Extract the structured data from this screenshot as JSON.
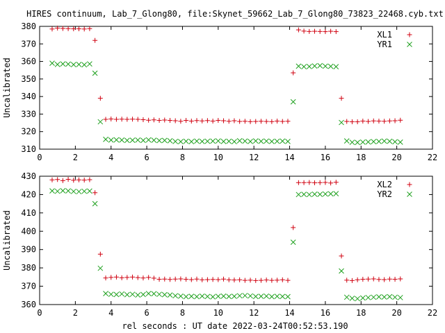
{
  "title": "HIRES continuum, Lab_7_Glong80, file:Skynet_59662_Lab_7_Glong80_73823_22468.cyb.txt",
  "xlabel": "rel seconds : UT date 2022-03-24T00:52:53.190",
  "colors": {
    "red": "#d0000f",
    "green": "#1ea01e",
    "axis": "#000000"
  },
  "chart_data": [
    {
      "type": "scatter",
      "ylabel": "Uncalibrated",
      "xlim": [
        0,
        22
      ],
      "ylim": [
        310,
        380
      ],
      "xticks": [
        0,
        2,
        4,
        6,
        8,
        10,
        12,
        14,
        16,
        18,
        20,
        22
      ],
      "yticks": [
        310,
        320,
        330,
        340,
        350,
        360,
        370,
        380
      ],
      "legend_position": "top-right",
      "series": [
        {
          "name": "XL1",
          "marker": "plus",
          "color": "#d0000f",
          "x": [
            0.7,
            1.0,
            1.3,
            1.6,
            1.9,
            2.2,
            2.5,
            2.8,
            3.1,
            3.4,
            3.7,
            4.0,
            4.3,
            4.6,
            4.9,
            5.2,
            5.5,
            5.8,
            6.1,
            6.4,
            6.7,
            7.0,
            7.3,
            7.6,
            7.9,
            8.2,
            8.5,
            8.8,
            9.1,
            9.4,
            9.7,
            10.0,
            10.3,
            10.6,
            10.9,
            11.2,
            11.5,
            11.8,
            12.1,
            12.4,
            12.7,
            13.0,
            13.3,
            13.6,
            13.9,
            14.2,
            14.5,
            14.8,
            15.1,
            15.4,
            15.7,
            16.0,
            16.3,
            16.6,
            16.9,
            17.2,
            17.5,
            17.8,
            18.1,
            18.4,
            18.7,
            19.0,
            19.3,
            19.6,
            19.9,
            20.2
          ],
          "y": [
            378.5,
            379.0,
            378.8,
            378.7,
            378.6,
            378.6,
            378.5,
            378.7,
            372.0,
            339.0,
            327.0,
            327.2,
            327.0,
            327.1,
            327.0,
            327.1,
            327.0,
            326.8,
            326.5,
            326.7,
            326.4,
            326.6,
            326.4,
            326.2,
            325.9,
            326.4,
            326.0,
            326.3,
            326.1,
            326.3,
            326.0,
            326.4,
            326.2,
            325.9,
            326.2,
            325.8,
            325.9,
            325.7,
            325.8,
            325.9,
            325.8,
            325.7,
            326.0,
            325.8,
            325.9,
            353.5,
            378.0,
            377.3,
            377.1,
            377.2,
            377.1,
            377.0,
            377.2,
            377.0,
            339.0,
            325.8,
            325.6,
            325.6,
            326.0,
            325.8,
            326.1,
            326.0,
            325.9,
            326.1,
            326.2,
            326.5
          ]
        },
        {
          "name": "YR1",
          "marker": "cross",
          "color": "#1ea01e",
          "x": [
            0.7,
            1.0,
            1.3,
            1.6,
            1.9,
            2.2,
            2.5,
            2.8,
            3.1,
            3.4,
            3.7,
            4.0,
            4.3,
            4.6,
            4.9,
            5.2,
            5.5,
            5.8,
            6.1,
            6.4,
            6.7,
            7.0,
            7.3,
            7.6,
            7.9,
            8.2,
            8.5,
            8.8,
            9.1,
            9.4,
            9.7,
            10.0,
            10.3,
            10.6,
            10.9,
            11.2,
            11.5,
            11.8,
            12.1,
            12.4,
            12.7,
            13.0,
            13.3,
            13.6,
            13.9,
            14.2,
            14.5,
            14.8,
            15.1,
            15.4,
            15.7,
            16.0,
            16.3,
            16.6,
            16.9,
            17.2,
            17.5,
            17.8,
            18.1,
            18.4,
            18.7,
            19.0,
            19.3,
            19.6,
            19.9,
            20.2
          ],
          "y": [
            359.0,
            358.3,
            358.6,
            358.5,
            358.2,
            358.3,
            358.1,
            358.6,
            353.3,
            325.6,
            315.6,
            315.2,
            315.3,
            315.2,
            315.0,
            315.1,
            315.2,
            315.0,
            315.3,
            315.1,
            314.9,
            315.0,
            314.8,
            314.4,
            314.3,
            314.5,
            314.3,
            314.6,
            314.4,
            314.5,
            314.6,
            314.7,
            314.4,
            314.5,
            314.3,
            314.8,
            314.6,
            314.4,
            314.7,
            314.5,
            314.6,
            314.4,
            314.5,
            314.6,
            314.4,
            337.0,
            357.3,
            357.0,
            357.1,
            357.4,
            357.6,
            357.3,
            357.2,
            357.0,
            325.2,
            314.7,
            313.9,
            313.8,
            314.0,
            314.1,
            314.3,
            314.4,
            314.6,
            314.5,
            314.2,
            314.0
          ]
        }
      ]
    },
    {
      "type": "scatter",
      "ylabel": "Uncalibrated",
      "xlim": [
        0,
        22
      ],
      "ylim": [
        360,
        430
      ],
      "xticks": [
        0,
        2,
        4,
        6,
        8,
        10,
        12,
        14,
        16,
        18,
        20,
        22
      ],
      "yticks": [
        360,
        370,
        380,
        390,
        400,
        410,
        420,
        430
      ],
      "legend_position": "top-right",
      "series": [
        {
          "name": "XL2",
          "marker": "plus",
          "color": "#d0000f",
          "x": [
            0.7,
            1.0,
            1.3,
            1.6,
            1.9,
            2.2,
            2.5,
            2.8,
            3.1,
            3.4,
            3.7,
            4.0,
            4.3,
            4.6,
            4.9,
            5.2,
            5.5,
            5.8,
            6.1,
            6.4,
            6.7,
            7.0,
            7.3,
            7.6,
            7.9,
            8.2,
            8.5,
            8.8,
            9.1,
            9.4,
            9.7,
            10.0,
            10.3,
            10.6,
            10.9,
            11.2,
            11.5,
            11.8,
            12.1,
            12.4,
            12.7,
            13.0,
            13.3,
            13.6,
            13.9,
            14.2,
            14.5,
            14.8,
            15.1,
            15.4,
            15.7,
            16.0,
            16.3,
            16.6,
            16.9,
            17.2,
            17.5,
            17.8,
            18.1,
            18.4,
            18.7,
            19.0,
            19.3,
            19.6,
            19.9,
            20.2
          ],
          "y": [
            428.0,
            428.2,
            427.6,
            428.3,
            427.8,
            428.0,
            427.9,
            428.1,
            421.0,
            387.5,
            374.5,
            374.8,
            375.0,
            374.6,
            374.8,
            375.0,
            374.7,
            374.5,
            374.8,
            374.4,
            373.8,
            373.9,
            373.7,
            373.9,
            374.0,
            373.8,
            373.6,
            373.9,
            373.5,
            373.6,
            373.7,
            373.6,
            373.9,
            373.5,
            373.4,
            373.5,
            373.2,
            373.3,
            373.1,
            373.2,
            373.4,
            373.2,
            373.3,
            373.5,
            373.2,
            402.0,
            426.5,
            426.5,
            426.6,
            426.4,
            426.5,
            426.6,
            426.3,
            426.7,
            386.5,
            373.3,
            373.1,
            373.5,
            373.8,
            373.9,
            374.0,
            373.7,
            373.6,
            373.9,
            373.8,
            374.0
          ]
        },
        {
          "name": "YR2",
          "marker": "cross",
          "color": "#1ea01e",
          "x": [
            0.7,
            1.0,
            1.3,
            1.6,
            1.9,
            2.2,
            2.5,
            2.8,
            3.1,
            3.4,
            3.7,
            4.0,
            4.3,
            4.6,
            4.9,
            5.2,
            5.5,
            5.8,
            6.1,
            6.4,
            6.7,
            7.0,
            7.3,
            7.6,
            7.9,
            8.2,
            8.5,
            8.8,
            9.1,
            9.4,
            9.7,
            10.0,
            10.3,
            10.6,
            10.9,
            11.2,
            11.5,
            11.8,
            12.1,
            12.4,
            12.7,
            13.0,
            13.3,
            13.6,
            13.9,
            14.2,
            14.5,
            14.8,
            15.1,
            15.4,
            15.7,
            16.0,
            16.3,
            16.6,
            16.9,
            17.2,
            17.5,
            17.8,
            18.1,
            18.4,
            18.7,
            19.0,
            19.3,
            19.6,
            19.9,
            20.2
          ],
          "y": [
            422.0,
            421.8,
            422.1,
            422.0,
            421.7,
            421.6,
            421.8,
            421.9,
            415.0,
            379.8,
            366.0,
            365.6,
            365.5,
            365.8,
            365.4,
            365.6,
            365.2,
            365.5,
            366.0,
            365.9,
            365.6,
            365.4,
            365.2,
            364.8,
            364.6,
            364.3,
            364.5,
            364.3,
            364.6,
            364.4,
            364.2,
            364.5,
            364.6,
            364.4,
            364.5,
            364.8,
            364.9,
            364.7,
            364.4,
            364.5,
            364.6,
            364.3,
            364.5,
            364.4,
            364.3,
            394.0,
            420.0,
            420.1,
            420.0,
            420.2,
            420.1,
            420.3,
            420.4,
            420.5,
            378.3,
            364.0,
            363.4,
            363.2,
            363.6,
            363.8,
            364.0,
            364.2,
            364.1,
            364.3,
            364.0,
            363.8
          ]
        }
      ]
    }
  ]
}
